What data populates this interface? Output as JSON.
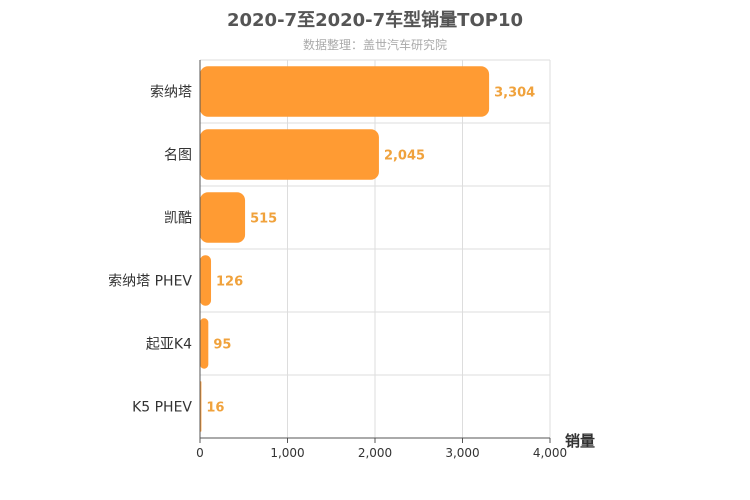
{
  "chart_data": {
    "type": "bar",
    "orientation": "horizontal",
    "title": "2020-7至2020-7车型销量TOP10",
    "subtitle": "数据整理：盖世汽车研究院",
    "categories": [
      "索纳塔",
      "名图",
      "凯酷",
      "索纳塔 PHEV",
      "起亚K4",
      "K5 PHEV"
    ],
    "values": [
      3304,
      2045,
      515,
      126,
      95,
      16
    ],
    "value_labels": [
      "3,304",
      "2,045",
      "515",
      "126",
      "95",
      "16"
    ],
    "xlabel": "销量",
    "ylabel": "",
    "xlim": [
      0,
      4000
    ],
    "xticks": [
      0,
      1000,
      2000,
      3000,
      4000
    ],
    "xtick_labels": [
      "0",
      "1,000",
      "2,000",
      "3,000",
      "4,000"
    ],
    "grid": true,
    "colors": {
      "bar": "#ff9b33",
      "label": "#f0a23c",
      "grid": "#dddddd",
      "axis": "#555555"
    }
  }
}
